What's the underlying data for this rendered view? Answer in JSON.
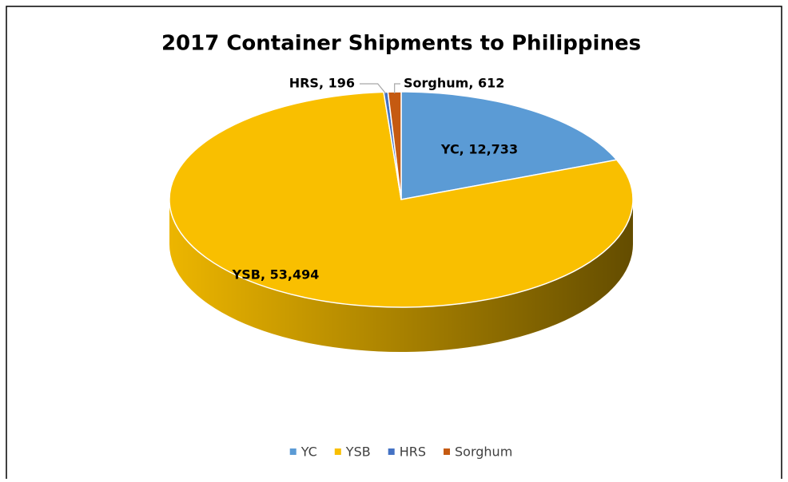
{
  "chart_data": {
    "type": "pie3d",
    "title": "2017 Container Shipments to Philippines",
    "categories": [
      "YC",
      "YSB",
      "HRS",
      "Sorghum"
    ],
    "values": [
      12733,
      53494,
      196,
      612
    ],
    "value_labels": [
      "YC, 12,733",
      "YSB, 53,494",
      "HRS, 196",
      "Sorghum, 612"
    ],
    "colors": [
      "#5b9bd5",
      "#f9bf00",
      "#4472c4",
      "#c55a11"
    ],
    "legend": "bottom"
  }
}
